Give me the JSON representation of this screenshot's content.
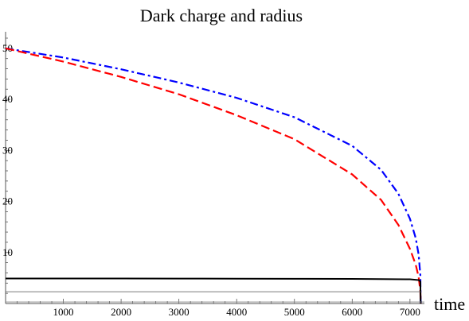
{
  "chart_data": {
    "type": "line",
    "title": "Dark charge and radius",
    "xlabel": "time",
    "ylabel": "",
    "xlim": [
      0,
      7250
    ],
    "ylim": [
      0,
      52
    ],
    "x_ticks": [
      1000,
      2000,
      3000,
      4000,
      5000,
      6000,
      7000
    ],
    "y_ticks": [
      10,
      20,
      30,
      40,
      50
    ],
    "x_tick_labels": [
      "1000",
      "2000",
      "3000",
      "4000",
      "5000",
      "6000",
      "7000"
    ],
    "y_tick_labels": [
      "10",
      "20",
      "30",
      "40",
      "50"
    ],
    "grid": false,
    "series": [
      {
        "style": "dash-dot",
        "color": "#0000ff",
        "x": [
          0,
          1000,
          2000,
          3000,
          4000,
          5000,
          6000,
          6500,
          6800,
          7000,
          7100,
          7150,
          7180,
          7185
        ],
        "y": [
          50,
          48.2,
          45.9,
          43.3,
          40.3,
          36.5,
          30.9,
          26.2,
          21.5,
          16.6,
          12.8,
          9.6,
          5.5,
          0
        ]
      },
      {
        "style": "dashed",
        "color": "#ff0000",
        "x": [
          0,
          1000,
          2000,
          3000,
          4000,
          5000,
          6000,
          6500,
          6800,
          7000,
          7100,
          7150,
          7180,
          7185
        ],
        "y": [
          50,
          47.4,
          44.4,
          41.0,
          36.9,
          32.2,
          25.3,
          20.3,
          15.4,
          10.7,
          7.6,
          5.2,
          2.4,
          0
        ]
      },
      {
        "style": "solid",
        "color": "#000000",
        "x": [
          0,
          1000,
          2000,
          3000,
          4000,
          5000,
          6000,
          7000,
          7150,
          7180,
          7185
        ],
        "y": [
          4.9,
          4.9,
          4.9,
          4.88,
          4.87,
          4.85,
          4.82,
          4.75,
          4.6,
          4.3,
          0
        ]
      },
      {
        "style": "thin-solid",
        "color": "#666666",
        "x": [
          0,
          7185
        ],
        "y": [
          2.3,
          2.3
        ]
      },
      {
        "style": "thin-solid",
        "color": "#888888",
        "x": [
          0,
          7250
        ],
        "y": [
          0.3,
          0.3
        ]
      }
    ]
  }
}
